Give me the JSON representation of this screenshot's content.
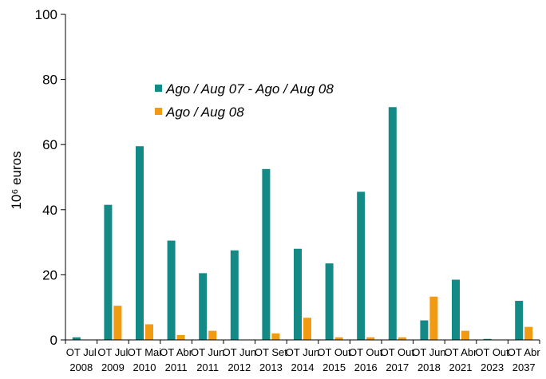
{
  "chart_data": {
    "type": "bar",
    "title": "",
    "xlabel": "",
    "ylabel": "10⁶ euros",
    "ylim": [
      0,
      100
    ],
    "yticks": [
      0,
      20,
      40,
      60,
      80,
      100
    ],
    "grid": false,
    "legend_position": "top-center",
    "categories": [
      "OT Jul 2008",
      "OT Jul 2009",
      "OT Mai 2010",
      "OT Abr 2011",
      "OT Jun 2011",
      "OT Jun 2012",
      "OT Set 2013",
      "OT Jun 2014",
      "OT Out 2015",
      "OT Out 2016",
      "OT Out 2017",
      "OT Jun 2018",
      "OT Abr 2021",
      "OT Out 2023",
      "OT Abr 2037"
    ],
    "series": [
      {
        "name": "Ago / Aug 07 - Ago / Aug 08",
        "color": "#138a85",
        "values": [
          0.8,
          41.5,
          59.5,
          30.5,
          20.5,
          27.5,
          52.5,
          28.0,
          23.5,
          45.5,
          71.5,
          6.0,
          18.5,
          0.3,
          12.0
        ]
      },
      {
        "name": "Ago / Aug 08",
        "color": "#f29a12",
        "values": [
          0.0,
          10.5,
          4.8,
          1.5,
          2.8,
          0.0,
          2.0,
          6.8,
          0.8,
          0.8,
          0.8,
          13.3,
          2.8,
          0.0,
          4.0
        ]
      }
    ]
  }
}
